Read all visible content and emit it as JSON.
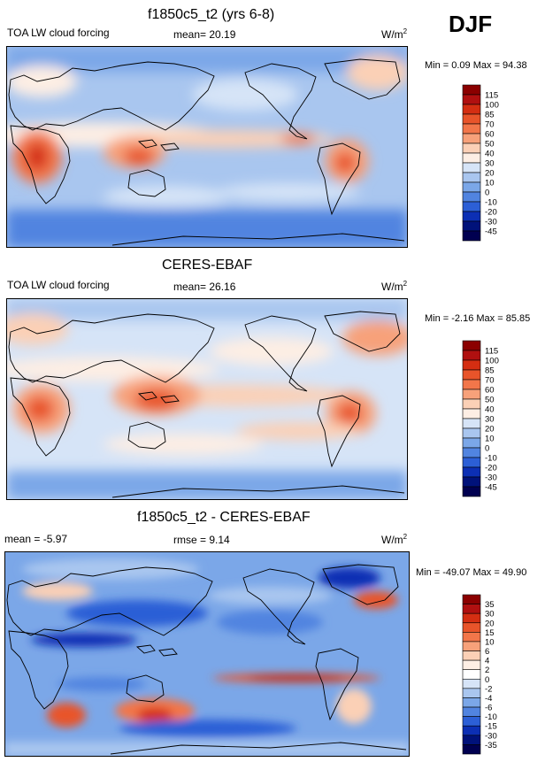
{
  "season": "DJF",
  "panels": [
    {
      "title": "f1850c5_t2 (yrs 6-8)",
      "left_label": "TOA LW cloud forcing",
      "center_label": "mean=  20.19",
      "units": "W/m",
      "units_exp": "2",
      "minmax": "Min =   0.09 Max =  94.38"
    },
    {
      "title": "CERES-EBAF",
      "left_label": "TOA LW cloud forcing",
      "center_label": "mean=  26.16",
      "units": "W/m",
      "units_exp": "2",
      "minmax": "Min =  -2.16 Max =  85.85"
    },
    {
      "title": "f1850c5_t2 - CERES-EBAF",
      "left_label": "mean =  -5.97",
      "center_label": "rmse =   9.14",
      "units": "W/m",
      "units_exp": "2",
      "minmax": "Min = -49.07 Max =  49.90"
    }
  ],
  "chart_data": [
    {
      "type": "heatmap",
      "title": "f1850c5_t2 (yrs 6-8)",
      "variable": "TOA LW cloud forcing",
      "mean": 20.19,
      "min": 0.09,
      "max": 94.38,
      "units": "W/m2",
      "levels": [
        115,
        100,
        85,
        70,
        60,
        50,
        40,
        30,
        20,
        10,
        0,
        -10,
        -20,
        -30,
        -45
      ],
      "colors": [
        "#8b0000",
        "#b01010",
        "#d42e12",
        "#e8542a",
        "#f2764a",
        "#f7a17a",
        "#fbd0b6",
        "#fdeee4",
        "#d6e4f7",
        "#a9c6ef",
        "#7ba7e8",
        "#5184e0",
        "#2c5fd6",
        "#0c2fb4",
        "#00127a",
        "#000050"
      ]
    },
    {
      "type": "heatmap",
      "title": "CERES-EBAF",
      "variable": "TOA LW cloud forcing",
      "mean": 26.16,
      "min": -2.16,
      "max": 85.85,
      "units": "W/m2",
      "levels": [
        115,
        100,
        85,
        70,
        60,
        50,
        40,
        30,
        20,
        10,
        0,
        -10,
        -20,
        -30,
        -45
      ],
      "colors": [
        "#8b0000",
        "#b01010",
        "#d42e12",
        "#e8542a",
        "#f2764a",
        "#f7a17a",
        "#fbd0b6",
        "#fdeee4",
        "#d6e4f7",
        "#a9c6ef",
        "#7ba7e8",
        "#5184e0",
        "#2c5fd6",
        "#0c2fb4",
        "#00127a",
        "#000050"
      ]
    },
    {
      "type": "heatmap",
      "title": "f1850c5_t2 - CERES-EBAF",
      "mean": -5.97,
      "rmse": 9.14,
      "min": -49.07,
      "max": 49.9,
      "units": "W/m2",
      "levels": [
        35,
        30,
        20,
        15,
        10,
        6,
        4,
        2,
        0,
        -2,
        -4,
        -6,
        -10,
        -15,
        -30,
        -35
      ],
      "colors": [
        "#8b0000",
        "#b01010",
        "#d42e12",
        "#e8542a",
        "#f2764a",
        "#f7a17a",
        "#fbd0b6",
        "#fdeee4",
        "#ffffff",
        "#d6e4f7",
        "#a9c6ef",
        "#7ba7e8",
        "#5184e0",
        "#2c5fd6",
        "#0c2fb4",
        "#00127a",
        "#000050"
      ]
    }
  ]
}
